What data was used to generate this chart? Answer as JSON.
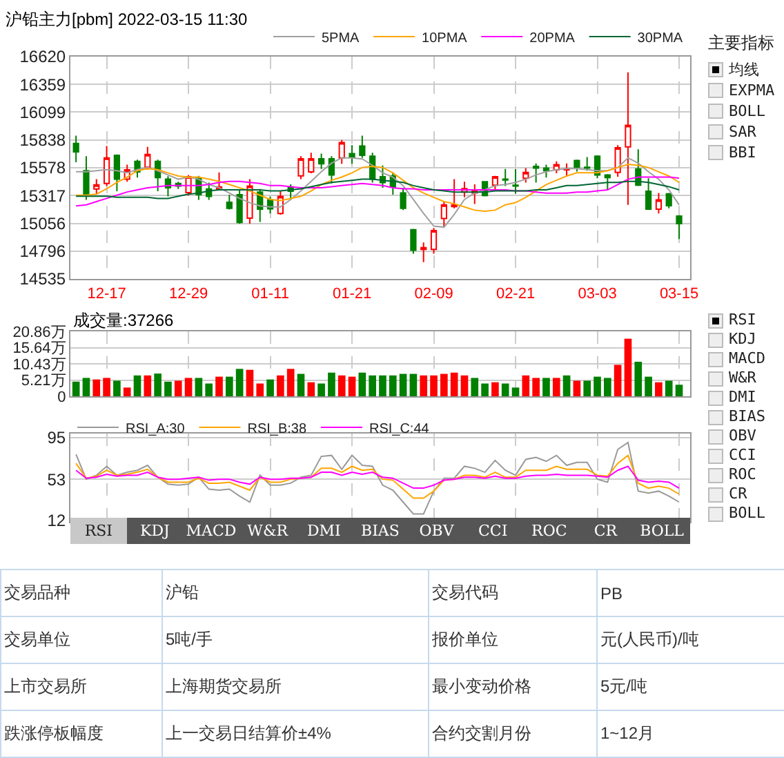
{
  "chart_data": [
    {
      "type": "candlestick",
      "title": "沪铅主力[pbm] 2022-03-15 11:30",
      "categories": [
        null,
        null,
        null,
        "12-17",
        null,
        null,
        null,
        null,
        null,
        null,
        null,
        "12-29",
        null,
        null,
        null,
        null,
        null,
        null,
        null,
        "01-11",
        null,
        null,
        null,
        null,
        null,
        null,
        null,
        "01-21",
        null,
        null,
        null,
        null,
        null,
        null,
        null,
        "02-09",
        null,
        null,
        null,
        null,
        null,
        null,
        null,
        "02-21",
        null,
        null,
        null,
        null,
        null,
        null,
        null,
        "03-03",
        null,
        null,
        null,
        null,
        null,
        null,
        null,
        "03-15"
      ],
      "ohlc": [
        [
          15806,
          15879,
          15630,
          15726
        ],
        [
          15550,
          15686,
          15277,
          15325
        ],
        [
          15378,
          15470,
          15325,
          15418
        ],
        [
          15430,
          15782,
          15406,
          15670
        ],
        [
          15694,
          15702,
          15358,
          15470
        ],
        [
          15470,
          15606,
          15446,
          15558
        ],
        [
          15638,
          15654,
          15486,
          15538
        ],
        [
          15582,
          15774,
          15558,
          15702
        ],
        [
          15638,
          15654,
          15358,
          15486
        ],
        [
          15470,
          15498,
          15309,
          15390
        ],
        [
          15430,
          15446,
          15378,
          15406
        ],
        [
          15345,
          15510,
          15317,
          15494
        ],
        [
          15478,
          15502,
          15277,
          15325
        ],
        [
          15378,
          15438,
          15277,
          15309
        ],
        [
          15378,
          15534,
          15366,
          15398
        ],
        [
          15253,
          15325,
          15185,
          15197
        ],
        [
          15325,
          15366,
          15053,
          15065
        ],
        [
          15105,
          15470,
          15053,
          15406
        ],
        [
          15349,
          15378,
          15069,
          15189
        ],
        [
          15277,
          15309,
          15149,
          15193
        ],
        [
          15149,
          15358,
          15137,
          15309
        ],
        [
          15398,
          15422,
          15277,
          15358
        ],
        [
          15502,
          15686,
          15470,
          15662
        ],
        [
          15538,
          15718,
          15526,
          15662
        ],
        [
          15662,
          15710,
          15566,
          15614
        ],
        [
          15662,
          15686,
          15430,
          15510
        ],
        [
          15670,
          15838,
          15614,
          15814
        ],
        [
          15710,
          15790,
          15614,
          15678
        ],
        [
          15782,
          15879,
          15670,
          15694
        ],
        [
          15686,
          15718,
          15438,
          15470
        ],
        [
          15494,
          15598,
          15390,
          15438
        ],
        [
          15502,
          15534,
          15325,
          15398
        ],
        [
          15341,
          15390,
          15181,
          15197
        ],
        [
          14997,
          15005,
          14772,
          14804
        ],
        [
          14812,
          14877,
          14692,
          14828
        ],
        [
          14812,
          15013,
          14772,
          14989
        ],
        [
          15101,
          15261,
          15021,
          15229
        ],
        [
          15213,
          15470,
          15197,
          15229
        ],
        [
          15349,
          15446,
          15301,
          15382
        ],
        [
          15341,
          15422,
          15237,
          15358
        ],
        [
          15446,
          15446,
          15309,
          15317
        ],
        [
          15414,
          15502,
          15374,
          15494
        ],
        [
          15470,
          15566,
          15406,
          15462
        ],
        [
          15414,
          15566,
          15333,
          15406
        ],
        [
          15478,
          15574,
          15438,
          15534
        ],
        [
          15590,
          15618,
          15438,
          15574
        ],
        [
          15574,
          15606,
          15486,
          15550
        ],
        [
          15558,
          15638,
          15526,
          15606
        ],
        [
          15558,
          15618,
          15494,
          15566
        ],
        [
          15646,
          15654,
          15542,
          15582
        ],
        [
          15582,
          15678,
          15550,
          15574
        ],
        [
          15686,
          15694,
          15478,
          15510
        ],
        [
          15510,
          15518,
          15374,
          15486
        ],
        [
          15534,
          15790,
          15494,
          15766
        ],
        [
          15774,
          16472,
          15229,
          15975
        ],
        [
          15566,
          15750,
          15406,
          15414
        ],
        [
          15358,
          15478,
          15189,
          15189
        ],
        [
          15189,
          15341,
          15149,
          15277
        ],
        [
          15333,
          15341,
          15197,
          15221
        ],
        [
          15125,
          15133,
          14909,
          15053
        ]
      ],
      "series": [
        {
          "name": "5PMA",
          "type": "line",
          "color": "#a0a0a0",
          "values": [
            15540,
            15540,
            15550,
            15560,
            15550,
            15530,
            15560,
            15580,
            15550,
            15510,
            15470,
            15490,
            15470,
            15420,
            15390,
            15340,
            15290,
            15250,
            15220,
            15210,
            15210,
            15280,
            15360,
            15450,
            15540,
            15620,
            15670,
            15670,
            15660,
            15600,
            15530,
            15490,
            15410,
            15280,
            15150,
            15030,
            15020,
            15140,
            15280,
            15340,
            15370,
            15410,
            15420,
            15440,
            15470,
            15510,
            15540,
            15560,
            15570,
            15570,
            15560,
            15550,
            15550,
            15580,
            15670,
            15620,
            15540,
            15470,
            15370,
            15230
          ]
        },
        {
          "name": "10PMA",
          "type": "line",
          "color": "#ffa500",
          "values": [
            15320,
            15320,
            15330,
            15380,
            15440,
            15490,
            15550,
            15570,
            15560,
            15530,
            15500,
            15490,
            15490,
            15470,
            15450,
            15420,
            15390,
            15360,
            15320,
            15280,
            15270,
            15290,
            15310,
            15360,
            15420,
            15460,
            15490,
            15530,
            15580,
            15590,
            15580,
            15530,
            15460,
            15390,
            15340,
            15300,
            15260,
            15240,
            15210,
            15180,
            15170,
            15180,
            15230,
            15250,
            15300,
            15360,
            15420,
            15460,
            15500,
            15530,
            15530,
            15530,
            15550,
            15580,
            15610,
            15600,
            15580,
            15540,
            15500,
            15440
          ]
        },
        {
          "name": "20PMA",
          "type": "line",
          "color": "#ff00ff",
          "values": [
            15220,
            15230,
            15260,
            15290,
            15320,
            15350,
            15370,
            15390,
            15400,
            15410,
            15410,
            15410,
            15410,
            15420,
            15440,
            15450,
            15450,
            15440,
            15430,
            15410,
            15410,
            15400,
            15390,
            15390,
            15390,
            15400,
            15410,
            15420,
            15430,
            15420,
            15410,
            15390,
            15380,
            15380,
            15370,
            15370,
            15370,
            15370,
            15370,
            15370,
            15370,
            15370,
            15370,
            15360,
            15360,
            15350,
            15340,
            15340,
            15340,
            15350,
            15350,
            15360,
            15370,
            15420,
            15470,
            15490,
            15490,
            15490,
            15490,
            15480
          ]
        },
        {
          "name": "30PMA",
          "type": "line",
          "color": "#006633",
          "values": [
            15310,
            15310,
            15310,
            15310,
            15300,
            15300,
            15300,
            15300,
            15290,
            15290,
            15310,
            15330,
            15340,
            15360,
            15370,
            15370,
            15370,
            15370,
            15370,
            15360,
            15360,
            15370,
            15380,
            15400,
            15420,
            15440,
            15450,
            15460,
            15470,
            15470,
            15460,
            15450,
            15440,
            15410,
            15390,
            15370,
            15360,
            15350,
            15350,
            15350,
            15350,
            15360,
            15360,
            15360,
            15360,
            15370,
            15370,
            15390,
            15410,
            15410,
            15420,
            15430,
            15440,
            15440,
            15450,
            15450,
            15440,
            15420,
            15400,
            15370
          ]
        }
      ],
      "ylim": [
        14535,
        16620
      ],
      "yticks": [
        14535,
        14796,
        15056,
        15317,
        15578,
        15838,
        16099,
        16359,
        16620
      ],
      "grid": true,
      "legend": "top right",
      "annotations": [
        "主要指标",
        "均线",
        "EXPMA",
        "BOLL",
        "SAR",
        "BBI"
      ]
    },
    {
      "type": "bar",
      "title": "成交量:37266",
      "categories": [
        null,
        null,
        null,
        null,
        null,
        null,
        null,
        null,
        null,
        null,
        null,
        null,
        null,
        null,
        null,
        null,
        null,
        null,
        null,
        null,
        null,
        null,
        null,
        null,
        null,
        null,
        null,
        null,
        null,
        null,
        null,
        null,
        null,
        null,
        null,
        null,
        null,
        null,
        null,
        null,
        null,
        null,
        null,
        null,
        null,
        null,
        null,
        null,
        null,
        null,
        null,
        null,
        null,
        null,
        null,
        null,
        null,
        null,
        null,
        null
      ],
      "values": [
        4.7,
        5.9,
        5.4,
        5.9,
        5.0,
        2.8,
        6.7,
        6.7,
        7.3,
        4.7,
        5.0,
        5.9,
        5.9,
        4.1,
        6.3,
        6.3,
        8.8,
        8.5,
        4.1,
        5.4,
        6.7,
        8.8,
        7.2,
        4.5,
        4.1,
        7.6,
        6.7,
        6.3,
        7.6,
        6.7,
        6.7,
        6.7,
        7.2,
        7.2,
        6.7,
        6.7,
        7.2,
        7.6,
        6.7,
        5.9,
        4.1,
        4.5,
        4.1,
        2.8,
        6.7,
        5.9,
        5.9,
        5.9,
        6.7,
        5.0,
        5.0,
        6.3,
        5.9,
        10.1,
        18.5,
        11.1,
        6.3,
        4.5,
        5.0,
        3.7
      ],
      "colors": [
        "#008000",
        "#008000",
        "#ff0000",
        "#ff0000",
        "#008000",
        "#ff0000",
        "#008000",
        "#ff0000",
        "#008000",
        "#008000",
        "#ff0000",
        "#ff0000",
        "#008000",
        "#008000",
        "#ff0000",
        "#008000",
        "#008000",
        "#ff0000",
        "#ff0000",
        "#008000",
        "#ff0000",
        "#ff0000",
        "#008000",
        "#ff0000",
        "#008000",
        "#008000",
        "#ff0000",
        "#ff0000",
        "#008000",
        "#008000",
        "#008000",
        "#008000",
        "#008000",
        "#008000",
        "#ff0000",
        "#ff0000",
        "#ff0000",
        "#ff0000",
        "#ff0000",
        "#008000",
        "#008000",
        "#ff0000",
        "#008000",
        "#008000",
        "#ff0000",
        "#ff0000",
        "#008000",
        "#ff0000",
        "#008000",
        "#ff0000",
        "#008000",
        "#008000",
        "#008000",
        "#ff0000",
        "#ff0000",
        "#008000",
        "#008000",
        "#ff0000",
        "#008000",
        "#008000"
      ],
      "ylim": [
        0,
        20.86
      ],
      "yticks": [
        0,
        {
          "value": 5.21,
          "label": "5.21万"
        },
        {
          "value": 10.43,
          "label": "10.43万"
        },
        {
          "value": 15.64,
          "label": "15.64万"
        },
        {
          "value": 20.86,
          "label": "20.86万"
        }
      ],
      "grid": true,
      "tick_labels": "y"
    },
    {
      "type": "line",
      "categories": [
        null,
        null,
        null,
        null,
        null,
        null,
        null,
        null,
        null,
        null,
        null,
        null,
        null,
        null,
        null,
        null,
        null,
        null,
        null,
        null,
        null,
        null,
        null,
        null,
        null,
        null,
        null,
        null,
        null,
        null,
        null,
        null,
        null,
        null,
        null,
        null,
        null,
        null,
        null,
        null,
        null,
        null,
        null,
        null,
        null,
        null,
        null,
        null,
        null,
        null,
        null,
        null,
        null,
        null,
        null,
        null,
        null,
        null,
        null,
        null
      ],
      "series": [
        {
          "name": "RSI_A:30",
          "color": "#999999",
          "values": [
            78,
            53,
            57,
            66,
            57,
            60,
            62,
            67,
            55,
            48,
            47,
            48,
            55,
            43,
            42,
            43,
            36,
            30,
            57,
            47,
            47,
            49,
            55,
            57,
            76,
            77,
            63,
            77,
            67,
            66,
            47,
            42,
            30,
            18,
            18,
            41,
            54,
            54,
            66,
            64,
            60,
            72,
            62,
            57,
            73,
            75,
            71,
            77,
            67,
            70,
            70,
            53,
            50,
            83,
            90,
            41,
            39,
            41,
            36,
            30
          ]
        },
        {
          "name": "RSI_B:38",
          "color": "#ffa500",
          "values": [
            69,
            54,
            56,
            62,
            57,
            58,
            60,
            63,
            55,
            50,
            50,
            50,
            54,
            49,
            49,
            50,
            46,
            42,
            55,
            50,
            50,
            53,
            54,
            55,
            64,
            64,
            60,
            66,
            62,
            63,
            53,
            52,
            43,
            34,
            34,
            41,
            52,
            53,
            57,
            57,
            55,
            60,
            55,
            55,
            62,
            62,
            62,
            66,
            63,
            63,
            63,
            57,
            56,
            69,
            77,
            49,
            44,
            46,
            44,
            38
          ]
        },
        {
          "name": "RSI_C:44",
          "color": "#ff00ff",
          "values": [
            62,
            54,
            55,
            58,
            56,
            57,
            57,
            60,
            55,
            53,
            53,
            54,
            55,
            52,
            53,
            53,
            50,
            48,
            55,
            53,
            53,
            54,
            54,
            55,
            60,
            60,
            57,
            60,
            58,
            60,
            55,
            54,
            49,
            44,
            44,
            47,
            52,
            53,
            55,
            55,
            54,
            56,
            54,
            54,
            56,
            57,
            57,
            58,
            57,
            57,
            57,
            56,
            55,
            62,
            66,
            52,
            50,
            51,
            50,
            44
          ]
        }
      ],
      "ylim": [
        10,
        99
      ],
      "yticks": [
        12,
        53,
        95
      ],
      "grid": true,
      "legend": "top left",
      "tick_labels": "y",
      "annotations": [
        "RSI",
        "KDJ",
        "MACD",
        "W&R",
        "DMI",
        "BIAS",
        "OBV",
        "CCI",
        "ROC",
        "CR",
        "BOLL",
        "RSI",
        "KDJ",
        "MACD",
        "W&R",
        "DMI",
        "BIAS",
        "OBV",
        "CCI",
        "ROC",
        "CR",
        "BOLL"
      ]
    },
    {
      "type": "other",
      "annotations": [
        "交易品种",
        "沪铅",
        "交易代码",
        "PB",
        "交易单位",
        "5吨/手",
        "报价单位",
        "元(人民币)/吨",
        "上市交易所",
        "上海期货交易所",
        "最小变动价格",
        "5元/吨",
        "跌涨停板幅度",
        "上一交易日结算价±4%",
        "合约交割月份",
        "1~12月"
      ]
    }
  ]
}
